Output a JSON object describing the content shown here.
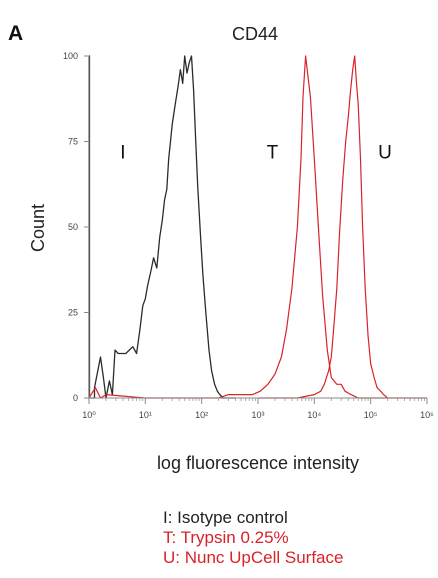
{
  "panel_label": "A",
  "colors": {
    "isotype": "#2b2b2b",
    "trypsin": "#d8232a",
    "upcell": "#d8232a",
    "axis": "#8a8a8a"
  },
  "legend": [
    {
      "text": "I: Isotype control",
      "color": "#222222"
    },
    {
      "text": "T: Trypsin 0.25%",
      "color": "#d8232a"
    },
    {
      "text": "U: Nunc UpCell Surface",
      "color": "#d8232a"
    }
  ],
  "chart_data": {
    "type": "line",
    "title": "CD44",
    "xlabel": "log fluorescence intensity",
    "ylabel": "Count",
    "xscale": "log",
    "xlim": [
      1,
      1000000
    ],
    "ylim": [
      0,
      100
    ],
    "x_ticks": [
      1,
      10,
      100,
      1000,
      10000,
      100000,
      1000000
    ],
    "x_tick_labels": [
      "10⁰",
      "10¹",
      "10²",
      "10³",
      "10⁴",
      "10⁵",
      "10⁶"
    ],
    "y_ticks": [
      0,
      25,
      50,
      75,
      100
    ],
    "y_tick_labels": [
      "0",
      "25",
      "50",
      "75",
      "100"
    ],
    "peak_labels": [
      {
        "text": "I",
        "x": 4,
        "y": 70
      },
      {
        "text": "T",
        "x": 1800,
        "y": 70
      },
      {
        "text": "U",
        "x": 180000,
        "y": 70
      }
    ],
    "series": [
      {
        "key": "isotype",
        "x": [
          1,
          1,
          1.02,
          1.02,
          1.25,
          1.25,
          1.6,
          1.8,
          2,
          2.3,
          2.6,
          2.9,
          3.3,
          3.6,
          4.5,
          6,
          7,
          8,
          9,
          10,
          11,
          12.5,
          14,
          16,
          18,
          20,
          22,
          24,
          26,
          28,
          30,
          34,
          38,
          42,
          46,
          50,
          55,
          60,
          66,
          72,
          78,
          85,
          95,
          105,
          120,
          135,
          150,
          170,
          190,
          210,
          240,
          280,
          330,
          400
        ],
        "y": [
          0,
          100,
          100,
          0,
          0,
          3,
          12,
          6,
          0,
          5,
          1,
          14,
          13,
          13,
          13,
          15,
          13,
          20,
          27,
          29,
          33,
          37,
          41,
          38,
          47,
          52,
          58,
          61,
          70,
          75,
          80,
          86,
          91,
          96,
          92,
          100,
          95,
          98,
          100,
          90,
          76,
          62,
          48,
          36,
          24,
          14,
          8,
          4,
          2,
          1,
          0,
          0,
          0,
          0
        ]
      },
      {
        "key": "trypsin",
        "x": [
          1,
          1.3,
          1.6,
          2,
          10,
          30,
          80,
          200,
          300,
          500,
          800,
          1100,
          1500,
          2000,
          2600,
          3200,
          4000,
          5000,
          5800,
          6300,
          7000,
          7600,
          8500,
          10000,
          12000,
          14000,
          17000,
          20000,
          25000,
          30000,
          35000,
          45000,
          60000,
          80000,
          120000,
          200000
        ],
        "y": [
          0,
          3,
          0,
          1,
          0,
          0,
          0,
          0,
          1,
          1,
          1,
          2,
          4,
          7,
          12,
          20,
          32,
          50,
          70,
          88,
          100,
          95,
          88,
          70,
          48,
          30,
          14,
          6,
          4,
          4,
          2,
          1,
          0,
          0,
          0,
          0
        ]
      },
      {
        "key": "upcell",
        "x": [
          1000,
          5000,
          10000,
          13000,
          15000,
          18000,
          20000,
          22000,
          25000,
          28000,
          32000,
          36000,
          40000,
          44000,
          48000,
          52000,
          56000,
          60000,
          66000,
          72000,
          80000,
          90000,
          100000,
          115000,
          130000,
          150000,
          170000,
          200000,
          300000,
          1000000
        ],
        "y": [
          0,
          0,
          1,
          2,
          4,
          8,
          12,
          20,
          32,
          48,
          64,
          75,
          82,
          90,
          96,
          100,
          92,
          86,
          70,
          50,
          32,
          18,
          10,
          6,
          3,
          2,
          1,
          0,
          0,
          0
        ]
      }
    ]
  }
}
